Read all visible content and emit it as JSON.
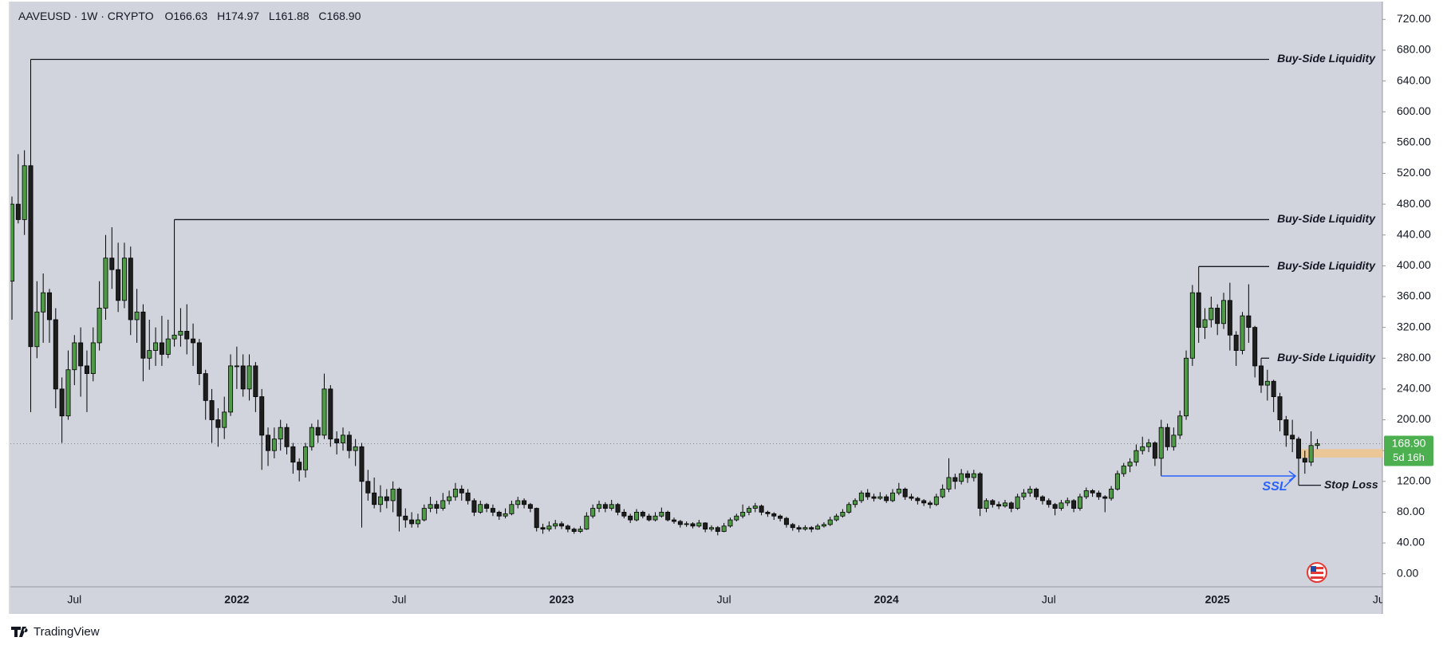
{
  "chart_data": {
    "type": "candlestick",
    "title": "AAVEUSD · 1W · CRYPTO",
    "ohlc_labels": [
      "O166.63",
      "H174.97",
      "L161.88",
      "C168.90"
    ],
    "up_color": "#4e9a45",
    "down_color": "#1e1e1e",
    "border_color": "#000000",
    "ylim": [
      -16.9,
      743.1
    ],
    "yticks": [
      {
        "value": 0,
        "label": "0.00"
      },
      {
        "value": 40,
        "label": "40.00"
      },
      {
        "value": 80,
        "label": "80.00"
      },
      {
        "value": 120,
        "label": "120.00"
      },
      {
        "value": 160,
        "label": "160.00"
      },
      {
        "value": 200,
        "label": "200.00"
      },
      {
        "value": 240,
        "label": "240.00"
      },
      {
        "value": 280,
        "label": "280.00"
      },
      {
        "value": 320,
        "label": "320.00"
      },
      {
        "value": 360,
        "label": "360.00"
      },
      {
        "value": 400,
        "label": "400.00"
      },
      {
        "value": 440,
        "label": "440.00"
      },
      {
        "value": 480,
        "label": "480.00"
      },
      {
        "value": 520,
        "label": "520.00"
      },
      {
        "value": 560,
        "label": "560.00"
      },
      {
        "value": 600,
        "label": "600.00"
      },
      {
        "value": 640,
        "label": "640.00"
      },
      {
        "value": 680,
        "label": "680.00"
      },
      {
        "value": 720,
        "label": "720.00"
      }
    ],
    "grid": false,
    "categories": [
      null,
      null,
      null,
      null,
      null,
      null,
      null,
      null,
      null,
      null,
      "Jul",
      null,
      null,
      null,
      null,
      null,
      null,
      null,
      null,
      null,
      null,
      null,
      null,
      null,
      null,
      null,
      null,
      null,
      null,
      null,
      null,
      null,
      null,
      null,
      null,
      null,
      "2022",
      null,
      null,
      null,
      null,
      null,
      null,
      null,
      null,
      null,
      null,
      null,
      null,
      null,
      null,
      null,
      null,
      null,
      null,
      null,
      null,
      null,
      null,
      null,
      null,
      null,
      "Jul",
      null,
      null,
      null,
      null,
      null,
      null,
      null,
      null,
      null,
      null,
      null,
      null,
      null,
      null,
      null,
      null,
      null,
      null,
      null,
      null,
      null,
      null,
      null,
      null,
      null,
      "2023",
      null,
      null,
      null,
      null,
      null,
      null,
      null,
      null,
      null,
      null,
      null,
      null,
      null,
      null,
      null,
      null,
      null,
      null,
      null,
      null,
      null,
      null,
      null,
      null,
      null,
      "Jul",
      null,
      null,
      null,
      null,
      null,
      null,
      null,
      null,
      null,
      null,
      null,
      null,
      null,
      null,
      null,
      null,
      null,
      null,
      null,
      null,
      null,
      null,
      null,
      null,
      null,
      "2024",
      null,
      null,
      null,
      null,
      null,
      null,
      null,
      null,
      null,
      null,
      null,
      null,
      null,
      null,
      null,
      null,
      null,
      null,
      null,
      null,
      null,
      null,
      null,
      null,
      null,
      "Jul",
      null,
      null,
      null,
      null,
      null,
      null,
      null,
      null,
      null,
      null,
      null,
      null,
      null,
      null,
      null,
      null,
      null,
      null,
      null,
      null,
      null,
      null,
      null,
      null,
      null,
      null,
      "2025",
      null,
      null,
      null,
      null,
      null,
      null,
      null,
      null,
      null,
      null,
      null,
      null,
      null,
      null,
      null,
      null,
      null,
      null,
      null,
      null,
      null,
      null,
      null,
      null,
      null,
      "Jul"
    ],
    "values": [
      [
        380,
        490,
        330,
        480
      ],
      [
        480,
        545,
        455,
        460
      ],
      [
        460,
        550,
        440,
        530
      ],
      [
        530,
        668,
        210,
        295
      ],
      [
        295,
        380,
        280,
        340
      ],
      [
        340,
        390,
        300,
        365
      ],
      [
        365,
        370,
        300,
        330
      ],
      [
        330,
        345,
        215,
        240
      ],
      [
        240,
        255,
        170,
        205
      ],
      [
        205,
        290,
        200,
        265
      ],
      [
        265,
        310,
        245,
        300
      ],
      [
        300,
        320,
        230,
        270
      ],
      [
        270,
        290,
        210,
        260
      ],
      [
        260,
        320,
        250,
        300
      ],
      [
        300,
        380,
        290,
        345
      ],
      [
        345,
        440,
        330,
        410
      ],
      [
        410,
        450,
        370,
        395
      ],
      [
        395,
        430,
        340,
        355
      ],
      [
        355,
        430,
        345,
        410
      ],
      [
        410,
        425,
        310,
        330
      ],
      [
        330,
        370,
        300,
        340
      ],
      [
        340,
        350,
        250,
        280
      ],
      [
        280,
        330,
        265,
        290
      ],
      [
        290,
        320,
        270,
        300
      ],
      [
        300,
        335,
        270,
        285
      ],
      [
        285,
        330,
        280,
        305
      ],
      [
        305,
        460,
        295,
        310
      ],
      [
        310,
        345,
        295,
        315
      ],
      [
        315,
        350,
        285,
        305
      ],
      [
        305,
        325,
        270,
        300
      ],
      [
        300,
        305,
        245,
        260
      ],
      [
        260,
        265,
        200,
        225
      ],
      [
        225,
        240,
        170,
        200
      ],
      [
        200,
        215,
        165,
        190
      ],
      [
        190,
        230,
        175,
        210
      ],
      [
        210,
        285,
        205,
        270
      ],
      [
        270,
        295,
        240,
        270
      ],
      [
        270,
        285,
        230,
        240
      ],
      [
        240,
        285,
        225,
        270
      ],
      [
        270,
        275,
        210,
        230
      ],
      [
        230,
        240,
        135,
        180
      ],
      [
        180,
        190,
        140,
        160
      ],
      [
        160,
        190,
        150,
        175
      ],
      [
        175,
        200,
        160,
        190
      ],
      [
        190,
        195,
        155,
        165
      ],
      [
        165,
        170,
        130,
        145
      ],
      [
        145,
        150,
        120,
        135
      ],
      [
        135,
        170,
        125,
        165
      ],
      [
        165,
        195,
        160,
        190
      ],
      [
        190,
        200,
        170,
        180
      ],
      [
        180,
        260,
        175,
        240
      ],
      [
        240,
        245,
        165,
        175
      ],
      [
        175,
        185,
        155,
        170
      ],
      [
        170,
        190,
        160,
        180
      ],
      [
        180,
        185,
        150,
        160
      ],
      [
        160,
        175,
        140,
        165
      ],
      [
        165,
        170,
        60,
        120
      ],
      [
        120,
        135,
        95,
        105
      ],
      [
        105,
        125,
        85,
        90
      ],
      [
        90,
        115,
        80,
        100
      ],
      [
        100,
        110,
        85,
        95
      ],
      [
        95,
        120,
        80,
        110
      ],
      [
        110,
        112,
        55,
        75
      ],
      [
        75,
        85,
        60,
        70
      ],
      [
        70,
        80,
        60,
        65
      ],
      [
        65,
        78,
        60,
        70
      ],
      [
        70,
        90,
        68,
        85
      ],
      [
        85,
        100,
        80,
        90
      ],
      [
        90,
        95,
        78,
        85
      ],
      [
        85,
        105,
        82,
        95
      ],
      [
        95,
        108,
        90,
        100
      ],
      [
        100,
        118,
        95,
        110
      ],
      [
        110,
        115,
        95,
        105
      ],
      [
        105,
        110,
        90,
        95
      ],
      [
        95,
        98,
        75,
        80
      ],
      [
        80,
        95,
        78,
        90
      ],
      [
        90,
        92,
        80,
        85
      ],
      [
        85,
        90,
        75,
        80
      ],
      [
        80,
        82,
        70,
        75
      ],
      [
        75,
        85,
        72,
        78
      ],
      [
        78,
        95,
        76,
        90
      ],
      [
        90,
        100,
        85,
        95
      ],
      [
        95,
        98,
        85,
        90
      ],
      [
        90,
        92,
        80,
        85
      ],
      [
        85,
        86,
        55,
        60
      ],
      [
        60,
        65,
        52,
        58
      ],
      [
        58,
        68,
        55,
        62
      ],
      [
        62,
        70,
        58,
        65
      ],
      [
        65,
        68,
        58,
        62
      ],
      [
        62,
        64,
        54,
        58
      ],
      [
        58,
        60,
        52,
        55
      ],
      [
        55,
        62,
        53,
        58
      ],
      [
        58,
        80,
        57,
        75
      ],
      [
        75,
        90,
        72,
        85
      ],
      [
        85,
        95,
        80,
        90
      ],
      [
        90,
        93,
        80,
        85
      ],
      [
        85,
        96,
        82,
        90
      ],
      [
        90,
        92,
        76,
        80
      ],
      [
        80,
        84,
        72,
        75
      ],
      [
        75,
        78,
        66,
        70
      ],
      [
        70,
        84,
        68,
        80
      ],
      [
        80,
        82,
        72,
        75
      ],
      [
        75,
        78,
        68,
        70
      ],
      [
        70,
        80,
        68,
        75
      ],
      [
        75,
        86,
        73,
        80
      ],
      [
        80,
        82,
        68,
        70
      ],
      [
        70,
        73,
        65,
        68
      ],
      [
        68,
        70,
        60,
        64
      ],
      [
        64,
        68,
        61,
        65
      ],
      [
        65,
        67,
        59,
        62
      ],
      [
        62,
        70,
        60,
        66
      ],
      [
        66,
        67,
        54,
        58
      ],
      [
        58,
        63,
        55,
        60
      ],
      [
        60,
        62,
        50,
        55
      ],
      [
        55,
        66,
        54,
        62
      ],
      [
        62,
        73,
        60,
        70
      ],
      [
        70,
        78,
        68,
        75
      ],
      [
        75,
        90,
        72,
        80
      ],
      [
        80,
        88,
        76,
        85
      ],
      [
        85,
        92,
        80,
        88
      ],
      [
        88,
        90,
        76,
        80
      ],
      [
        80,
        82,
        74,
        78
      ],
      [
        78,
        80,
        70,
        75
      ],
      [
        75,
        77,
        68,
        72
      ],
      [
        72,
        74,
        60,
        64
      ],
      [
        64,
        66,
        56,
        60
      ],
      [
        60,
        63,
        54,
        58
      ],
      [
        58,
        63,
        56,
        60
      ],
      [
        60,
        62,
        54,
        58
      ],
      [
        58,
        65,
        57,
        62
      ],
      [
        62,
        67,
        60,
        64
      ],
      [
        64,
        74,
        62,
        70
      ],
      [
        70,
        78,
        68,
        75
      ],
      [
        75,
        84,
        73,
        80
      ],
      [
        80,
        93,
        78,
        90
      ],
      [
        90,
        98,
        86,
        95
      ],
      [
        95,
        108,
        92,
        105
      ],
      [
        105,
        110,
        96,
        100
      ],
      [
        100,
        104,
        94,
        98
      ],
      [
        98,
        106,
        96,
        100
      ],
      [
        100,
        103,
        92,
        95
      ],
      [
        95,
        110,
        93,
        105
      ],
      [
        105,
        118,
        102,
        110
      ],
      [
        110,
        112,
        96,
        100
      ],
      [
        100,
        104,
        95,
        98
      ],
      [
        98,
        100,
        90,
        95
      ],
      [
        95,
        97,
        88,
        92
      ],
      [
        92,
        95,
        85,
        90
      ],
      [
        90,
        104,
        88,
        100
      ],
      [
        100,
        116,
        98,
        110
      ],
      [
        110,
        150,
        106,
        125
      ],
      [
        125,
        130,
        110,
        120
      ],
      [
        120,
        136,
        116,
        130
      ],
      [
        130,
        134,
        118,
        125
      ],
      [
        125,
        135,
        120,
        130
      ],
      [
        130,
        132,
        75,
        85
      ],
      [
        85,
        98,
        80,
        95
      ],
      [
        95,
        97,
        86,
        90
      ],
      [
        90,
        94,
        84,
        88
      ],
      [
        88,
        96,
        86,
        92
      ],
      [
        92,
        94,
        80,
        85
      ],
      [
        85,
        104,
        83,
        100
      ],
      [
        100,
        110,
        96,
        105
      ],
      [
        105,
        114,
        100,
        110
      ],
      [
        110,
        112,
        96,
        100
      ],
      [
        100,
        102,
        90,
        95
      ],
      [
        95,
        98,
        86,
        90
      ],
      [
        90,
        92,
        76,
        85
      ],
      [
        85,
        96,
        82,
        92
      ],
      [
        92,
        99,
        88,
        95
      ],
      [
        95,
        97,
        80,
        85
      ],
      [
        85,
        104,
        82,
        100
      ],
      [
        100,
        112,
        97,
        108
      ],
      [
        108,
        110,
        100,
        105
      ],
      [
        105,
        108,
        96,
        100
      ],
      [
        100,
        102,
        80,
        98
      ],
      [
        98,
        114,
        95,
        110
      ],
      [
        110,
        134,
        108,
        130
      ],
      [
        130,
        144,
        126,
        140
      ],
      [
        140,
        150,
        132,
        145
      ],
      [
        145,
        168,
        140,
        160
      ],
      [
        160,
        178,
        155,
        165
      ],
      [
        165,
        175,
        158,
        170
      ],
      [
        170,
        172,
        140,
        150
      ],
      [
        150,
        200,
        127,
        190
      ],
      [
        190,
        195,
        160,
        165
      ],
      [
        165,
        190,
        160,
        180
      ],
      [
        180,
        212,
        175,
        205
      ],
      [
        205,
        290,
        200,
        280
      ],
      [
        280,
        375,
        270,
        365
      ],
      [
        365,
        399,
        300,
        320
      ],
      [
        320,
        345,
        305,
        330
      ],
      [
        330,
        360,
        320,
        345
      ],
      [
        345,
        350,
        310,
        325
      ],
      [
        325,
        365,
        318,
        355
      ],
      [
        355,
        378,
        290,
        310
      ],
      [
        310,
        315,
        270,
        290
      ],
      [
        290,
        340,
        285,
        335
      ],
      [
        335,
        376,
        300,
        320
      ],
      [
        320,
        322,
        255,
        270
      ],
      [
        270,
        280,
        235,
        245
      ],
      [
        245,
        265,
        225,
        250
      ],
      [
        250,
        252,
        210,
        230
      ],
      [
        230,
        235,
        185,
        200
      ],
      [
        200,
        205,
        165,
        180
      ],
      [
        180,
        200,
        158,
        175
      ],
      [
        175,
        178,
        115,
        150
      ],
      [
        150,
        160,
        130,
        145
      ],
      [
        145,
        185,
        140,
        166.63
      ],
      [
        166.63,
        174.97,
        161.88,
        168.9
      ],
      null,
      null,
      null,
      null,
      null,
      null,
      null,
      null,
      null,
      null
    ],
    "liquidity_lines": [
      {
        "label": "Buy-Side Liquidity",
        "value": 668,
        "from": 3
      },
      {
        "label": "Buy-Side Liquidity",
        "value": 460,
        "from": 26
      },
      {
        "label": "Buy-Side Liquidity",
        "value": 399,
        "from": 190
      },
      {
        "label": "Buy-Side Liquidity",
        "value": 280,
        "from": 200
      }
    ],
    "ssl": {
      "label": "SSL",
      "value": 127,
      "from": 184,
      "to": 206,
      "color": "#2962ff"
    },
    "stop_loss": {
      "label": "Stop Loss",
      "value": 115,
      "from": 206
    },
    "zone": {
      "low": 151,
      "high": 162,
      "from": 206,
      "color": "#f0c48c"
    },
    "last_price": {
      "value": 168.9,
      "label": "168.90",
      "countdown": "5d 16h",
      "color": "#4caf50"
    }
  },
  "brand": "TradingView"
}
